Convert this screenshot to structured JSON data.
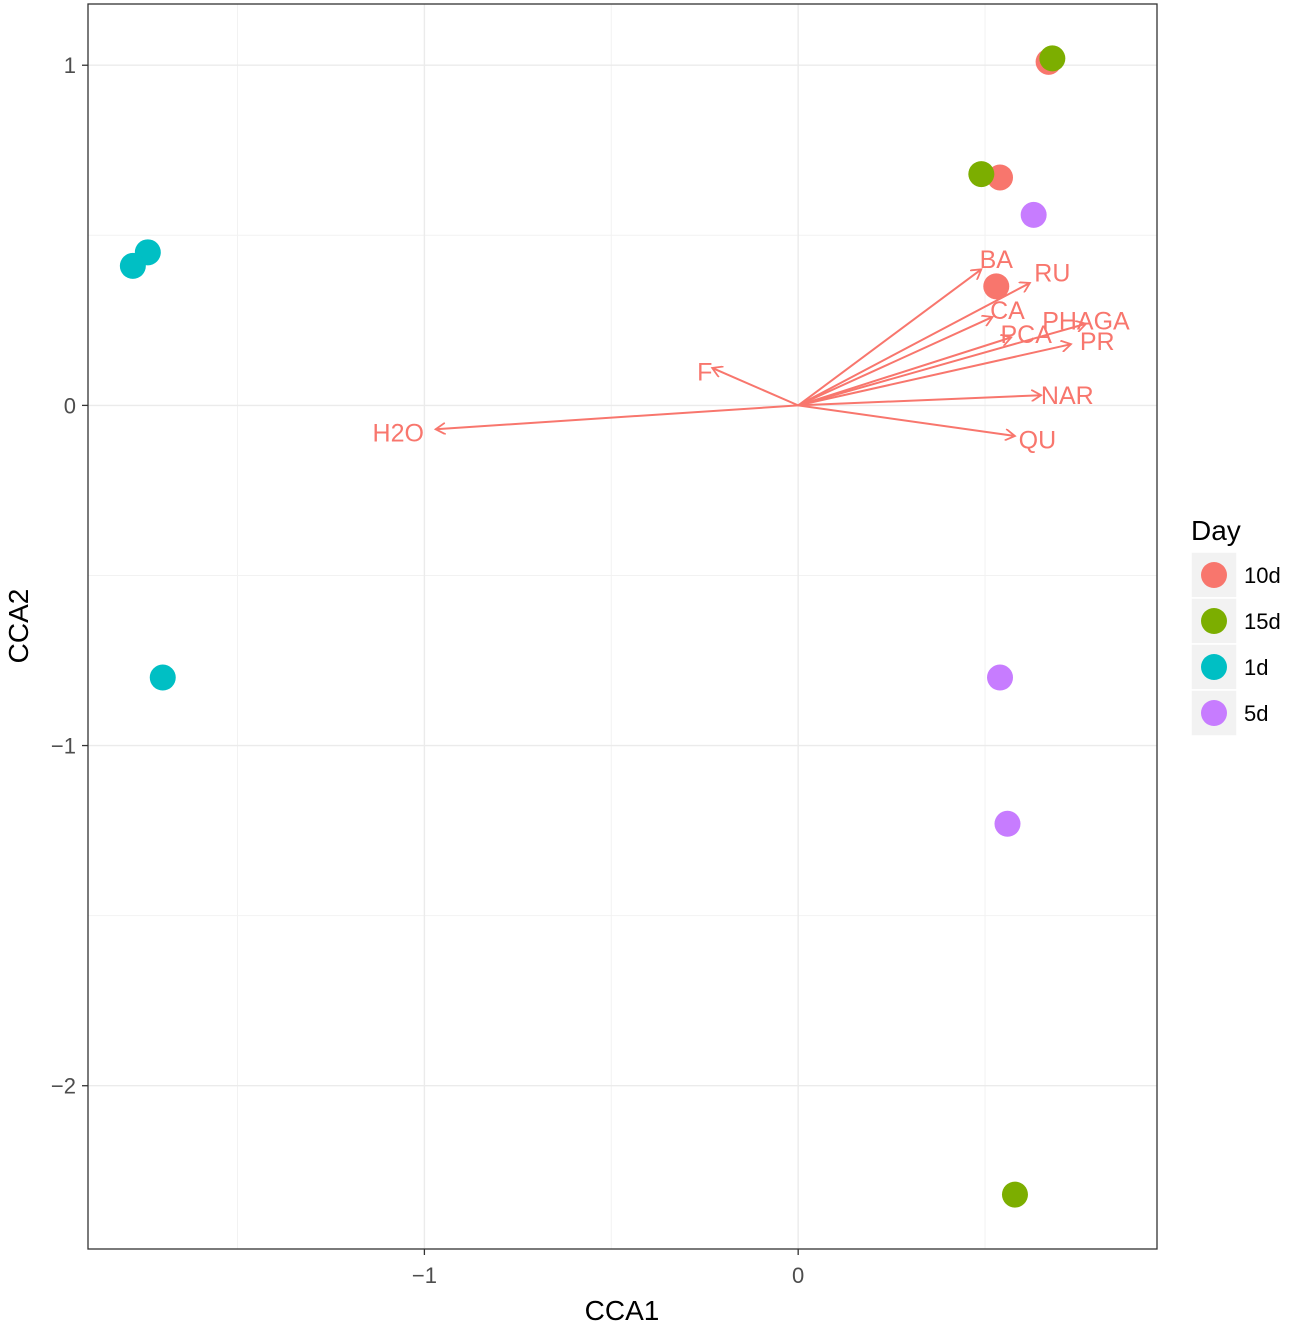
{
  "chart_data": {
    "type": "scatter",
    "title": "",
    "xlabel": "CCA1",
    "ylabel": "CCA2",
    "xlim": [
      -1.9,
      0.96
    ],
    "ylim": [
      -2.48,
      1.18
    ],
    "x_ticks": [
      {
        "value": -1,
        "label": "−1"
      },
      {
        "value": 0,
        "label": "0"
      }
    ],
    "y_ticks": [
      {
        "value": 1,
        "label": "1"
      },
      {
        "value": 0,
        "label": "0"
      },
      {
        "value": -1,
        "label": "−1"
      },
      {
        "value": -2,
        "label": "−2"
      }
    ],
    "x_minor": [
      -1.5,
      -0.5,
      0.5
    ],
    "y_minor": [
      0.5,
      -0.5,
      -1.5
    ],
    "legend": {
      "title": "Day",
      "position": "right",
      "entries": [
        {
          "label": "10d",
          "color": "#F8766D"
        },
        {
          "label": "15d",
          "color": "#7CAE00"
        },
        {
          "label": "1d",
          "color": "#00BFC4"
        },
        {
          "label": "5d",
          "color": "#C77CFF"
        }
      ]
    },
    "series": [
      {
        "name": "10d",
        "color": "#F8766D",
        "points": [
          {
            "x": 0.67,
            "y": 1.01
          },
          {
            "x": 0.54,
            "y": 0.67
          },
          {
            "x": 0.53,
            "y": 0.35
          }
        ]
      },
      {
        "name": "15d",
        "color": "#7CAE00",
        "points": [
          {
            "x": 0.68,
            "y": 1.02
          },
          {
            "x": 0.49,
            "y": 0.68
          },
          {
            "x": 0.58,
            "y": -2.32
          }
        ]
      },
      {
        "name": "1d",
        "color": "#00BFC4",
        "points": [
          {
            "x": -1.74,
            "y": 0.45
          },
          {
            "x": -1.78,
            "y": 0.41
          },
          {
            "x": -1.7,
            "y": -0.8
          }
        ]
      },
      {
        "name": "5d",
        "color": "#C77CFF",
        "points": [
          {
            "x": 0.63,
            "y": 0.56
          },
          {
            "x": 0.54,
            "y": -0.8
          },
          {
            "x": 0.56,
            "y": -1.23
          }
        ]
      }
    ],
    "arrows": {
      "color": "#F8766D",
      "origin": [
        0,
        0
      ],
      "vectors": [
        {
          "name": "BA",
          "x": 0.49,
          "y": 0.4,
          "label_x": 0.53,
          "label_y": 0.43
        },
        {
          "name": "RU",
          "x": 0.62,
          "y": 0.36,
          "label_x": 0.68,
          "label_y": 0.39
        },
        {
          "name": "CA",
          "x": 0.52,
          "y": 0.26,
          "label_x": 0.56,
          "label_y": 0.28
        },
        {
          "name": "PHAGA",
          "x": 0.77,
          "y": 0.24,
          "label_x": 0.77,
          "label_y": 0.25
        },
        {
          "name": "PCA",
          "x": 0.57,
          "y": 0.2,
          "label_x": 0.61,
          "label_y": 0.21
        },
        {
          "name": "PR",
          "x": 0.73,
          "y": 0.18,
          "label_x": 0.8,
          "label_y": 0.19
        },
        {
          "name": "NAR",
          "x": 0.65,
          "y": 0.03,
          "label_x": 0.72,
          "label_y": 0.03
        },
        {
          "name": "QU",
          "x": 0.58,
          "y": -0.09,
          "label_x": 0.64,
          "label_y": -0.1
        },
        {
          "name": "F",
          "x": -0.23,
          "y": 0.11,
          "label_x": -0.25,
          "label_y": 0.1
        },
        {
          "name": "H2O",
          "x": -0.97,
          "y": -0.07,
          "label_x": -1.07,
          "label_y": -0.08
        }
      ]
    }
  }
}
